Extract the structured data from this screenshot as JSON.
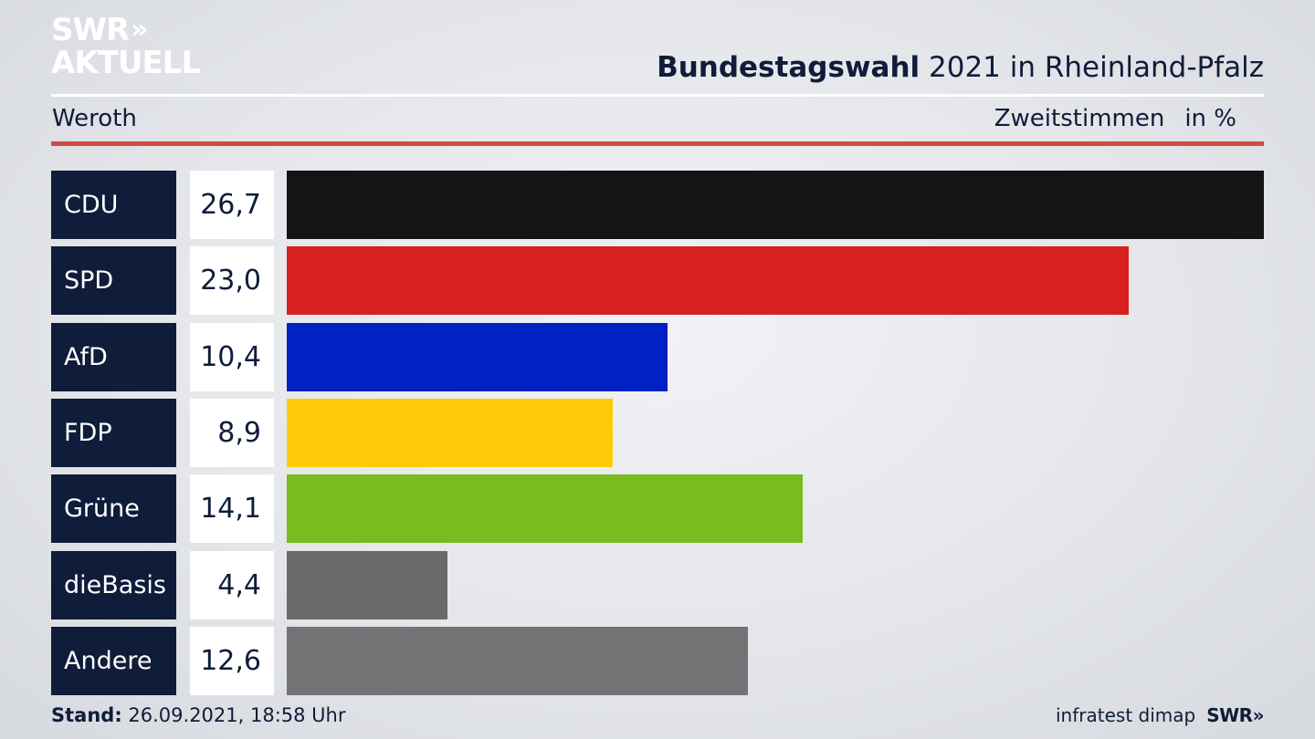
{
  "logo": {
    "line1": "SWR",
    "chevrons": "»",
    "line2": "AKTUELL"
  },
  "header": {
    "title_bold": "Bundestagswahl",
    "title_rest": " 2021 in Rheinland-Pfalz",
    "region": "Weroth",
    "metric": "Zweitstimmen",
    "unit": "in %"
  },
  "footer": {
    "stand_label": "Stand:",
    "stand_value": " 26.09.2021, 18:58 Uhr",
    "source": "infratest dimap",
    "brand": "SWR»"
  },
  "chart_data": {
    "type": "bar",
    "orientation": "horizontal",
    "categories": [
      "CDU",
      "SPD",
      "AfD",
      "FDP",
      "Grüne",
      "dieBasis",
      "Andere"
    ],
    "values": [
      26.7,
      23.0,
      10.4,
      8.9,
      14.1,
      4.4,
      12.6
    ],
    "value_labels": [
      "26,7",
      "23,0",
      "10,4",
      "8,9",
      "14,1",
      "4,4",
      "12,6"
    ],
    "colors": [
      "#141414",
      "#d82020",
      "#0021c4",
      "#fdcb07",
      "#78bc1e",
      "#6a6a6a",
      "#737375"
    ],
    "title": "Bundestagswahl 2021 in Rheinland-Pfalz",
    "xlim": [
      0,
      26.7
    ]
  }
}
